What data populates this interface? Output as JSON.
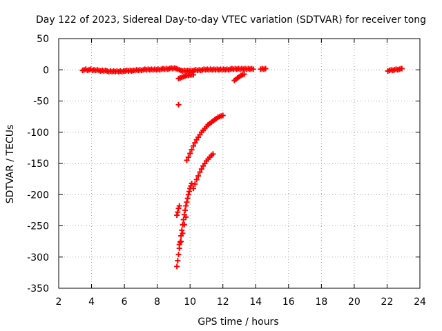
{
  "chart_data": {
    "type": "scatter",
    "title": "Day 122 of 2023, Sidereal Day-to-day VTEC variation (SDTVAR) for receiver tong",
    "xlabel": "GPS time / hours",
    "ylabel": "SDTVAR / TECUs",
    "xlim": [
      2,
      24
    ],
    "ylim": [
      -350,
      50
    ],
    "xticks": [
      2,
      4,
      6,
      8,
      10,
      12,
      14,
      16,
      18,
      20,
      22,
      24
    ],
    "yticks": [
      50,
      0,
      -50,
      -100,
      -150,
      -200,
      -250,
      -300,
      -350
    ],
    "grid": true,
    "legend": "none",
    "marker": "+",
    "color": "#ff0000",
    "series": [
      {
        "points": [
          [
            3.45,
            -1
          ],
          [
            3.55,
            0
          ],
          [
            3.65,
            1
          ],
          [
            3.75,
            -1
          ],
          [
            3.85,
            0
          ],
          [
            3.95,
            1
          ],
          [
            4.05,
            -1
          ],
          [
            4.15,
            0
          ],
          [
            4.25,
            -1
          ],
          [
            4.35,
            0
          ],
          [
            4.45,
            -1
          ],
          [
            4.55,
            -2
          ],
          [
            4.65,
            -1
          ],
          [
            4.75,
            -2
          ],
          [
            4.85,
            -1
          ],
          [
            4.95,
            -2
          ],
          [
            5.05,
            -3
          ],
          [
            5.15,
            -2
          ],
          [
            5.25,
            -3
          ],
          [
            5.35,
            -2
          ],
          [
            5.45,
            -3
          ],
          [
            5.55,
            -2
          ],
          [
            5.65,
            -3
          ],
          [
            5.75,
            -2
          ],
          [
            5.85,
            -3
          ],
          [
            5.95,
            -2
          ],
          [
            6.05,
            -2
          ],
          [
            6.15,
            -1
          ],
          [
            6.25,
            -2
          ],
          [
            6.35,
            -1
          ],
          [
            6.45,
            -2
          ],
          [
            6.55,
            -1
          ],
          [
            6.65,
            -1
          ],
          [
            6.75,
            0
          ],
          [
            6.85,
            -1
          ],
          [
            6.95,
            0
          ],
          [
            7.05,
            -1
          ],
          [
            7.15,
            0
          ],
          [
            7.25,
            1
          ],
          [
            7.35,
            0
          ],
          [
            7.45,
            1
          ],
          [
            7.55,
            0
          ],
          [
            7.65,
            1
          ],
          [
            7.75,
            0
          ],
          [
            7.85,
            1
          ],
          [
            7.95,
            0
          ],
          [
            8.05,
            1
          ],
          [
            8.15,
            0
          ],
          [
            8.25,
            1
          ],
          [
            8.35,
            2
          ],
          [
            8.45,
            1
          ],
          [
            8.55,
            2
          ],
          [
            8.65,
            1
          ],
          [
            8.75,
            2
          ],
          [
            8.85,
            3
          ],
          [
            8.95,
            2
          ],
          [
            9.05,
            3
          ],
          [
            9.15,
            2
          ],
          [
            9.25,
            1
          ],
          [
            9.35,
            0
          ],
          [
            9.45,
            -1
          ],
          [
            9.55,
            -2
          ],
          [
            9.65,
            -1
          ],
          [
            9.75,
            -2
          ],
          [
            9.85,
            -1
          ],
          [
            9.95,
            -2
          ],
          [
            10.05,
            -1
          ],
          [
            10.15,
            -2
          ],
          [
            10.25,
            -1
          ],
          [
            10.35,
            0
          ],
          [
            10.45,
            -1
          ],
          [
            10.55,
            0
          ],
          [
            10.65,
            -1
          ],
          [
            10.75,
            0
          ],
          [
            10.85,
            1
          ],
          [
            10.95,
            0
          ],
          [
            11.05,
            1
          ],
          [
            11.15,
            0
          ],
          [
            11.25,
            1
          ],
          [
            11.35,
            0
          ],
          [
            11.45,
            1
          ],
          [
            11.55,
            0
          ],
          [
            11.65,
            1
          ],
          [
            11.75,
            0
          ],
          [
            11.85,
            1
          ],
          [
            11.95,
            0
          ],
          [
            12.05,
            1
          ],
          [
            12.15,
            0
          ],
          [
            12.25,
            1
          ],
          [
            12.35,
            0
          ],
          [
            12.45,
            1
          ],
          [
            12.55,
            2
          ],
          [
            12.65,
            1
          ],
          [
            12.75,
            2
          ],
          [
            12.85,
            1
          ],
          [
            12.95,
            2
          ],
          [
            13.05,
            1
          ],
          [
            13.15,
            2
          ],
          [
            13.25,
            1
          ],
          [
            13.35,
            2
          ],
          [
            13.45,
            1
          ],
          [
            13.55,
            2
          ],
          [
            13.65,
            1
          ],
          [
            13.75,
            2
          ],
          [
            13.85,
            1
          ],
          [
            14.3,
            1
          ],
          [
            14.4,
            2
          ],
          [
            14.5,
            1
          ],
          [
            14.6,
            2
          ],
          [
            22.05,
            -2
          ],
          [
            22.15,
            -1
          ],
          [
            22.25,
            0
          ],
          [
            22.35,
            -1
          ],
          [
            22.45,
            0
          ],
          [
            22.55,
            1
          ],
          [
            22.65,
            0
          ],
          [
            22.75,
            1
          ],
          [
            22.85,
            2
          ],
          [
            22.9,
            2
          ],
          [
            9.3,
            -14
          ],
          [
            9.4,
            -13
          ],
          [
            9.5,
            -12
          ],
          [
            9.6,
            -11
          ],
          [
            9.7,
            -10
          ],
          [
            9.8,
            -9
          ],
          [
            9.9,
            -9
          ],
          [
            10.0,
            -8
          ],
          [
            10.1,
            -8
          ],
          [
            10.2,
            -8
          ],
          [
            12.7,
            -17
          ],
          [
            12.8,
            -15
          ],
          [
            12.9,
            -13
          ],
          [
            13.0,
            -11
          ],
          [
            13.1,
            -9
          ],
          [
            13.2,
            -8
          ],
          [
            13.3,
            -7
          ],
          [
            9.3,
            -56
          ],
          [
            9.8,
            -145
          ],
          [
            9.9,
            -140
          ],
          [
            10.0,
            -134
          ],
          [
            10.1,
            -128
          ],
          [
            10.2,
            -122
          ],
          [
            10.3,
            -117
          ],
          [
            10.4,
            -112
          ],
          [
            10.5,
            -108
          ],
          [
            10.6,
            -104
          ],
          [
            10.7,
            -100
          ],
          [
            10.8,
            -97
          ],
          [
            10.9,
            -94
          ],
          [
            11.0,
            -91
          ],
          [
            11.1,
            -88
          ],
          [
            11.2,
            -86
          ],
          [
            11.3,
            -84
          ],
          [
            11.4,
            -82
          ],
          [
            11.5,
            -80
          ],
          [
            11.6,
            -78
          ],
          [
            11.7,
            -76
          ],
          [
            11.8,
            -75
          ],
          [
            11.9,
            -74
          ],
          [
            12.0,
            -73
          ],
          [
            9.2,
            -233
          ],
          [
            9.25,
            -228
          ],
          [
            9.3,
            -222
          ],
          [
            9.35,
            -218
          ],
          [
            9.2,
            -315
          ],
          [
            9.25,
            -306
          ],
          [
            9.3,
            -296
          ],
          [
            9.35,
            -286
          ],
          [
            9.4,
            -276
          ],
          [
            9.45,
            -266
          ],
          [
            9.5,
            -257
          ],
          [
            9.55,
            -248
          ],
          [
            9.6,
            -240
          ],
          [
            9.65,
            -232
          ],
          [
            9.7,
            -225
          ],
          [
            9.75,
            -218
          ],
          [
            9.8,
            -212
          ],
          [
            9.85,
            -206
          ],
          [
            9.9,
            -200
          ],
          [
            9.95,
            -195
          ],
          [
            10.0,
            -190
          ],
          [
            10.05,
            -186
          ],
          [
            10.1,
            -182
          ],
          [
            10.2,
            -190
          ],
          [
            10.3,
            -183
          ],
          [
            10.4,
            -176
          ],
          [
            10.5,
            -170
          ],
          [
            10.6,
            -164
          ],
          [
            10.7,
            -159
          ],
          [
            10.8,
            -154
          ],
          [
            10.9,
            -150
          ],
          [
            11.0,
            -146
          ],
          [
            11.1,
            -143
          ],
          [
            11.2,
            -140
          ],
          [
            11.3,
            -137
          ],
          [
            11.4,
            -135
          ],
          [
            9.35,
            -280
          ],
          [
            9.45,
            -275
          ],
          [
            9.55,
            -262
          ],
          [
            9.65,
            -248
          ],
          [
            9.75,
            -236
          ]
        ]
      }
    ]
  }
}
